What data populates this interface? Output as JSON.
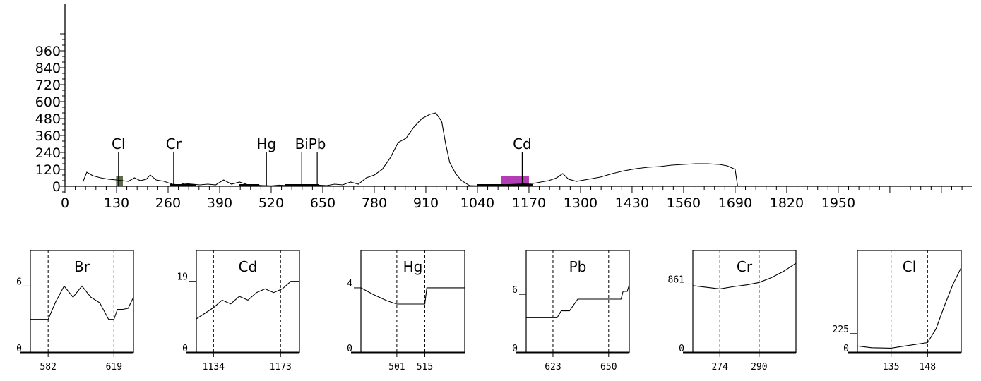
{
  "chart_data": [
    {
      "type": "line",
      "role": "spectrum",
      "x_ticks": [
        0,
        130,
        260,
        390,
        520,
        650,
        780,
        910,
        1040,
        1170,
        1300,
        1430,
        1560,
        1690,
        1820,
        1950
      ],
      "y_ticks": [
        0,
        120,
        240,
        360,
        480,
        600,
        720,
        840,
        960
      ],
      "xlim": [
        0,
        2100
      ],
      "ylim": [
        -40,
        1080
      ],
      "series": [
        {
          "x": [
            45,
            55,
            70,
            90,
            110,
            130,
            145,
            160,
            175,
            190,
            205,
            215,
            230,
            250,
            270,
            290,
            300,
            320,
            340,
            360,
            380,
            400,
            420,
            440,
            460,
            480,
            500,
            520,
            540,
            560,
            580,
            600,
            620,
            640,
            660,
            680,
            700,
            720,
            740,
            760,
            780,
            800,
            820,
            840,
            860,
            880,
            900,
            920,
            935,
            950,
            960,
            970,
            985,
            1000,
            1020,
            1040,
            1060,
            1080,
            1100,
            1120,
            1140,
            1160,
            1180,
            1200,
            1220,
            1240,
            1255,
            1270,
            1290,
            1320,
            1350,
            1380,
            1410,
            1440,
            1470,
            1500,
            1530,
            1560,
            1590,
            1620,
            1650,
            1670,
            1690,
            1696
          ],
          "y": [
            30,
            100,
            75,
            60,
            50,
            45,
            40,
            35,
            60,
            40,
            50,
            80,
            45,
            35,
            15,
            10,
            20,
            15,
            10,
            15,
            10,
            45,
            15,
            30,
            12,
            8,
            5,
            3,
            8,
            5,
            8,
            5,
            12,
            8,
            5,
            15,
            10,
            30,
            15,
            60,
            80,
            120,
            200,
            310,
            340,
            420,
            480,
            510,
            520,
            460,
            300,
            170,
            90,
            40,
            5,
            3,
            5,
            8,
            10,
            12,
            15,
            18,
            20,
            30,
            40,
            60,
            90,
            50,
            35,
            50,
            65,
            90,
            110,
            125,
            135,
            140,
            150,
            155,
            160,
            160,
            155,
            145,
            120,
            5
          ]
        }
      ],
      "markers": [
        {
          "label": "Cl",
          "x": 135
        },
        {
          "label": "Cr",
          "x": 274
        },
        {
          "label": "Hg",
          "x": 508
        },
        {
          "label": "Bi",
          "x": 597
        },
        {
          "label": "Pb",
          "x": 636
        },
        {
          "label": "Cd",
          "x": 1153
        }
      ],
      "bands": [
        {
          "x0": 129,
          "x1": 146,
          "color": "#5c6a45"
        },
        {
          "x0": 1100,
          "x1": 1170,
          "color": "#b43cb4"
        }
      ]
    },
    {
      "type": "line",
      "role": "zoom",
      "label": "Br",
      "x_ticks": [
        582,
        619
      ],
      "y_ticks": [
        0,
        6
      ],
      "xlim": [
        572,
        630
      ],
      "ylim": [
        0,
        9.2
      ],
      "dashed_x": [
        582,
        619
      ],
      "series": [
        {
          "x": [
            572,
            582,
            586,
            591,
            596,
            601,
            606,
            611,
            616,
            619,
            621,
            624,
            627,
            630
          ],
          "y": [
            3,
            3,
            4.5,
            6,
            5,
            6,
            5,
            4.5,
            3,
            3,
            3.9,
            3.9,
            4,
            5
          ]
        }
      ]
    },
    {
      "type": "line",
      "role": "zoom",
      "label": "Cd",
      "x_ticks": [
        1134,
        1173
      ],
      "y_ticks": [
        0,
        19
      ],
      "xlim": [
        1124,
        1184
      ],
      "ylim": [
        0,
        27.2
      ],
      "dashed_x": [
        1134,
        1173
      ],
      "series": [
        {
          "x": [
            1124,
            1134,
            1139,
            1144,
            1149,
            1154,
            1159,
            1164,
            1169,
            1174,
            1179,
            1184
          ],
          "y": [
            9,
            12,
            14,
            13,
            15,
            14,
            16,
            17,
            16,
            17,
            19,
            19
          ]
        }
      ]
    },
    {
      "type": "line",
      "role": "zoom",
      "label": "Hg",
      "x_ticks": [
        501,
        515
      ],
      "y_ticks": [
        0,
        4
      ],
      "xlim": [
        483,
        535
      ],
      "ylim": [
        0,
        6.3
      ],
      "dashed_x": [
        501,
        515
      ],
      "series": [
        {
          "x": [
            483,
            489,
            496,
            501,
            507,
            515,
            516,
            525,
            535
          ],
          "y": [
            4,
            3.6,
            3.2,
            3,
            3,
            3,
            4,
            4,
            4
          ]
        }
      ]
    },
    {
      "type": "line",
      "role": "zoom",
      "label": "Pb",
      "x_ticks": [
        623,
        650
      ],
      "y_ticks": [
        0,
        6
      ],
      "xlim": [
        610,
        660
      ],
      "ylim": [
        0,
        10.5
      ],
      "dashed_x": [
        623,
        650
      ],
      "series": [
        {
          "x": [
            610,
            619,
            625,
            627,
            631,
            635,
            640,
            650,
            656,
            657,
            659,
            660
          ],
          "y": [
            3.6,
            3.6,
            3.6,
            4.3,
            4.3,
            5.5,
            5.5,
            5.5,
            5.5,
            6.3,
            6.3,
            7
          ]
        }
      ]
    },
    {
      "type": "line",
      "role": "zoom",
      "label": "Cr",
      "x_ticks": [
        274,
        290
      ],
      "y_ticks": [
        0,
        861
      ],
      "xlim": [
        263,
        305
      ],
      "ylim": [
        0,
        1280
      ],
      "dashed_x": [
        274,
        290
      ],
      "series": [
        {
          "x": [
            263,
            274,
            280,
            285,
            290,
            295,
            300,
            305
          ],
          "y": [
            840,
            800,
            830,
            850,
            880,
            940,
            1020,
            1120
          ]
        }
      ]
    },
    {
      "type": "line",
      "role": "zoom",
      "label": "Cl",
      "x_ticks": [
        135,
        148
      ],
      "y_ticks": [
        0,
        225
      ],
      "xlim": [
        123,
        160
      ],
      "ylim": [
        0,
        1200
      ],
      "dashed_x": [
        135,
        148
      ],
      "series": [
        {
          "x": [
            123,
            128,
            135,
            140,
            148,
            151,
            154,
            157,
            160
          ],
          "y": [
            80,
            60,
            55,
            80,
            120,
            280,
            550,
            800,
            1000
          ]
        }
      ]
    }
  ]
}
